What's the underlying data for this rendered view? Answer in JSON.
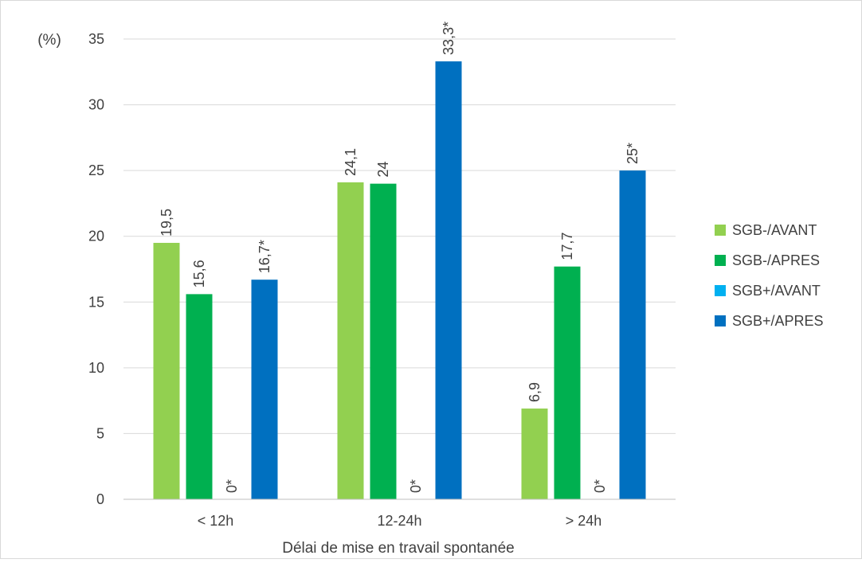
{
  "chart_data": {
    "type": "bar",
    "ylabel": "(%)",
    "xlabel": "Délai de mise en travail spontanée",
    "categories": [
      "< 12h",
      "12-24h",
      "> 24h"
    ],
    "ylim": [
      0,
      35
    ],
    "yticks": [
      "0",
      "5",
      "10",
      "15",
      "20",
      "25",
      "30",
      "35"
    ],
    "grid": true,
    "legend_position": "right",
    "series": [
      {
        "name": "SGB-/AVANT",
        "color": "#92D050",
        "values": [
          19.5,
          24.1,
          6.9
        ],
        "labels": [
          "19,5",
          "24,1",
          "6,9"
        ]
      },
      {
        "name": "SGB-/APRES",
        "color": "#00B050",
        "values": [
          15.6,
          24,
          17.7
        ],
        "labels": [
          "15,6",
          "24",
          "17,7"
        ]
      },
      {
        "name": "SGB+/AVANT",
        "color": "#00B0F0",
        "values": [
          0,
          0,
          0
        ],
        "labels": [
          "0*",
          "0*",
          "0*"
        ]
      },
      {
        "name": "SGB+/APRES",
        "color": "#0070C0",
        "values": [
          16.7,
          33.3,
          25
        ],
        "labels": [
          "16,7*",
          "33,3*",
          "25*"
        ]
      }
    ]
  }
}
